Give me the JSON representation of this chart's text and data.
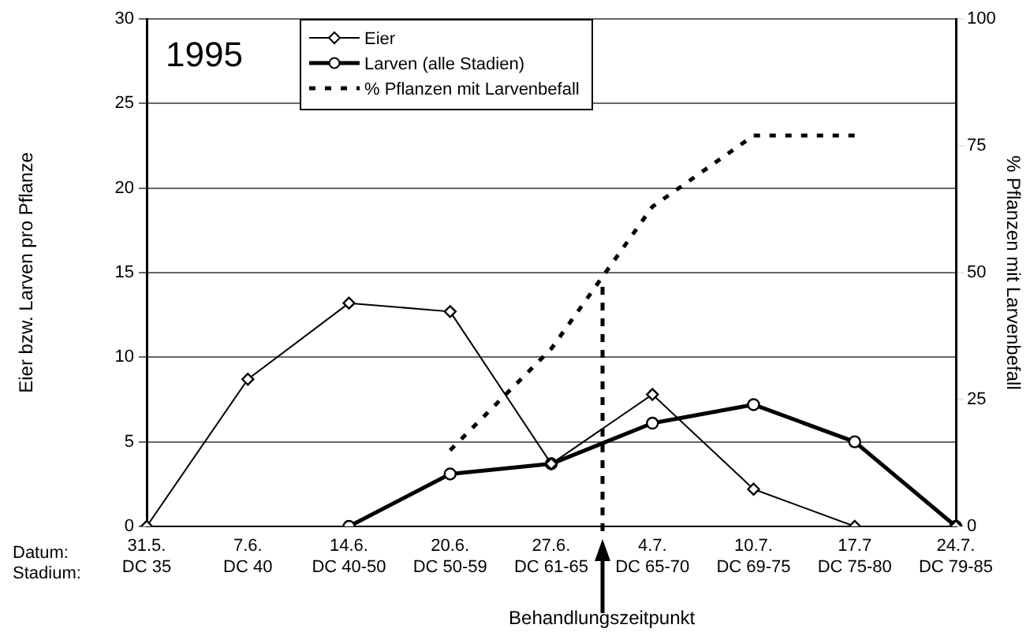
{
  "chart_data": {
    "type": "line",
    "xlabel": "Behandlungszeitpunkt",
    "ylabel": "Eier bzw. Larven pro Pflanze",
    "y2label": "% Pflanzen mit Larvenbefall",
    "categories": [
      "31.5.\nDC 35",
      "7.6.\nDC 40",
      "14.6.\nDC 40-50",
      "20.6.\nDC 50-59",
      "27.6.\nDC 61-65",
      "4.7.\nDC 65-70",
      "10.7.\nDC 69-75",
      "17.7\nDC 75-80",
      "24.7.\nDC 79-85"
    ],
    "series": [
      {
        "name": "Eier",
        "color": "#000000",
        "marker": "diamond",
        "line_style": "solid",
        "values": [
          0,
          8.7,
          13.2,
          12.7,
          3.7,
          7.8,
          2.2,
          0,
          0
        ]
      },
      {
        "name": "Larven (alle Stadien)",
        "color": "#000000",
        "marker": "circle",
        "line_style": "solid",
        "values": [
          null,
          null,
          0,
          3.1,
          3.7,
          6.1,
          7.2,
          5.0,
          0
        ]
      },
      {
        "name": "% Pflanzen mit Larvenbefall",
        "color": "#000000",
        "marker": "none",
        "line_style": "dashed",
        "axis": "y2",
        "values": [
          null,
          null,
          null,
          15,
          35,
          63,
          77,
          77,
          null
        ]
      }
    ],
    "ylim": [
      0,
      30
    ],
    "yticks": [
      0,
      5,
      10,
      15,
      20,
      25,
      30
    ],
    "y2lim": [
      0,
      100
    ],
    "y2ticks": [
      0,
      25,
      50,
      75,
      100
    ],
    "grid": "y",
    "legend": "top left",
    "annotations": [
      "1995",
      "Datum:",
      "Stadium:"
    ]
  }
}
